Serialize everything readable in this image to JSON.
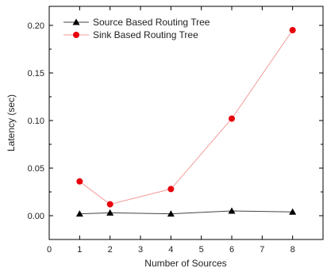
{
  "chart_data": {
    "type": "line",
    "xlabel": "Number of Sources",
    "ylabel": "Latency (sec)",
    "xlim": [
      0,
      9
    ],
    "ylim": [
      -0.025,
      0.22
    ],
    "x_ticks": [
      0,
      1,
      2,
      3,
      4,
      5,
      6,
      7,
      8
    ],
    "x_tick_labels": [
      "0",
      "1",
      "2",
      "3",
      "4",
      "5",
      "6",
      "7",
      "8"
    ],
    "y_ticks": [
      0.0,
      0.05,
      0.1,
      0.15,
      0.2
    ],
    "y_tick_labels": [
      "0.00",
      "0.05",
      "0.10",
      "0.15",
      "0.20"
    ],
    "grid": false,
    "legend_position": "top-left",
    "series": [
      {
        "name": "Source Based Routing Tree",
        "marker": "triangle",
        "color": "#000000",
        "x": [
          1,
          2,
          4,
          6,
          8
        ],
        "y": [
          0.002,
          0.003,
          0.002,
          0.005,
          0.004
        ]
      },
      {
        "name": "Sink Based Routing Tree",
        "marker": "circle",
        "color": "#e8000b",
        "x": [
          1,
          2,
          4,
          6,
          8
        ],
        "y": [
          0.036,
          0.012,
          0.028,
          0.102,
          0.195
        ]
      }
    ]
  }
}
